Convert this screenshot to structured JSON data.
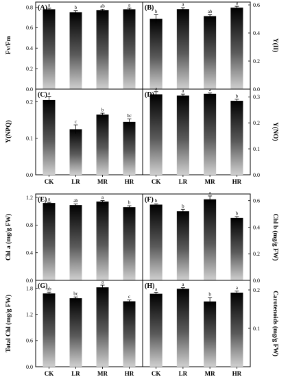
{
  "chart_data": [
    {
      "id": "A",
      "type": "bar",
      "panel_label": "(A)",
      "ylabel": "Fv/Fm",
      "categories": [
        "CK",
        "LR",
        "MR",
        "HR"
      ],
      "values": [
        0.78,
        0.75,
        0.77,
        0.78
      ],
      "errors": [
        0.01,
        0.015,
        0.01,
        0.01
      ],
      "significance": [
        "a",
        "b",
        "ab",
        "a"
      ],
      "ylim": [
        0,
        0.85
      ],
      "yticks": [
        "0.0",
        "0.2",
        "0.4",
        "0.6",
        "0.8"
      ],
      "yaxis": "left"
    },
    {
      "id": "B",
      "type": "bar",
      "panel_label": "(B)",
      "ylabel": "Y(II)",
      "categories": [
        "CK",
        "LR",
        "MR",
        "HR"
      ],
      "values": [
        0.5,
        0.57,
        0.52,
        0.58
      ],
      "errors": [
        0.03,
        0.01,
        0.01,
        0.01
      ],
      "significance": [
        "b",
        "a",
        "ab",
        "a"
      ],
      "ylim": [
        0,
        0.62
      ],
      "yticks": [
        "0.0",
        "0.2",
        "0.4",
        "0.6"
      ],
      "yaxis": "right"
    },
    {
      "id": "C",
      "type": "bar",
      "panel_label": "(C)",
      "ylabel": "Y(NPQ)",
      "categories": [
        "CK",
        "LR",
        "MR",
        "HR"
      ],
      "values": [
        0.205,
        0.125,
        0.165,
        0.145
      ],
      "errors": [
        0.01,
        0.012,
        0.004,
        0.008
      ],
      "significance": [
        "a",
        "c",
        "b",
        "bc"
      ],
      "ylim": [
        0,
        0.235
      ],
      "yticks": [
        "0.0",
        "0.1",
        "0.2"
      ],
      "yaxis": "left",
      "xticks": [
        "CK",
        "LR",
        "MR",
        "HR"
      ]
    },
    {
      "id": "D",
      "type": "bar",
      "panel_label": "(D)",
      "ylabel": "Y(NO)",
      "categories": [
        "CK",
        "LR",
        "MR",
        "HR"
      ],
      "values": [
        0.31,
        0.305,
        0.312,
        0.285
      ],
      "errors": [
        0.01,
        0.006,
        0.003,
        0.006
      ],
      "significance": [
        "a",
        "a",
        "a",
        "b"
      ],
      "ylim": [
        0,
        0.33
      ],
      "yticks": [
        "0.0",
        "0.1",
        "0.2",
        "0.3"
      ],
      "yaxis": "right",
      "xticks": [
        "CK",
        "LR",
        "MR",
        "HR"
      ]
    },
    {
      "id": "E",
      "type": "bar",
      "panel_label": "(E)",
      "ylabel": "Chl a (mg/g FW)",
      "categories": [
        "CK",
        "LR",
        "MR",
        "HR"
      ],
      "values": [
        1.12,
        1.09,
        1.14,
        1.06
      ],
      "errors": [
        0.01,
        0.015,
        0.015,
        0.02
      ],
      "significance": [
        "a",
        "ab",
        "a",
        "b"
      ],
      "ylim": [
        0,
        1.25
      ],
      "yticks": [
        "0.0",
        "0.4",
        "0.8",
        "1.2"
      ],
      "yaxis": "left"
    },
    {
      "id": "F",
      "type": "bar",
      "panel_label": "(F)",
      "ylabel": "Chl b (mg/g FW)",
      "categories": [
        "CK",
        "LR",
        "MR",
        "HR"
      ],
      "values": [
        0.57,
        0.52,
        0.61,
        0.47
      ],
      "errors": [
        0.005,
        0.015,
        0.025,
        0.01
      ],
      "significance": [
        "b",
        "b",
        "a",
        "b"
      ],
      "ylim": [
        0,
        0.65
      ],
      "yticks": [
        "0.0",
        "0.2",
        "0.4",
        "0.6"
      ],
      "yaxis": "right"
    },
    {
      "id": "G",
      "type": "bar",
      "panel_label": "(G)",
      "ylabel": "Total Chl (mg/g FW)",
      "categories": [
        "CK",
        "LR",
        "MR",
        "HR"
      ],
      "values": [
        1.68,
        1.57,
        1.82,
        1.5
      ],
      "errors": [
        0.03,
        0.03,
        0.05,
        0.03
      ],
      "significance": [
        "ab",
        "bc",
        "a",
        "c"
      ],
      "ylim": [
        0,
        1.98
      ],
      "yticks": [
        "0.0",
        "0.6",
        "1.2",
        "1.8"
      ],
      "yaxis": "left",
      "xticks": [
        "CK",
        "LR",
        "MR",
        "HR"
      ]
    },
    {
      "id": "H",
      "type": "bar",
      "panel_label": "(H)",
      "ylabel": "Carotenoids (mg/g FW)",
      "categories": [
        "CK",
        "LR",
        "MR",
        "HR"
      ],
      "values": [
        0.19,
        0.203,
        0.17,
        0.193
      ],
      "errors": [
        0.004,
        0.003,
        0.01,
        0.004
      ],
      "significance": [
        "a",
        "a",
        "b",
        "a"
      ],
      "ylim": [
        0,
        0.225
      ],
      "yticks": [
        "0.1",
        "0.2"
      ],
      "tick_values": [
        0.1,
        0.2
      ],
      "yaxis": "right",
      "xticks": [
        "CK",
        "LR",
        "MR",
        "HR"
      ]
    }
  ]
}
